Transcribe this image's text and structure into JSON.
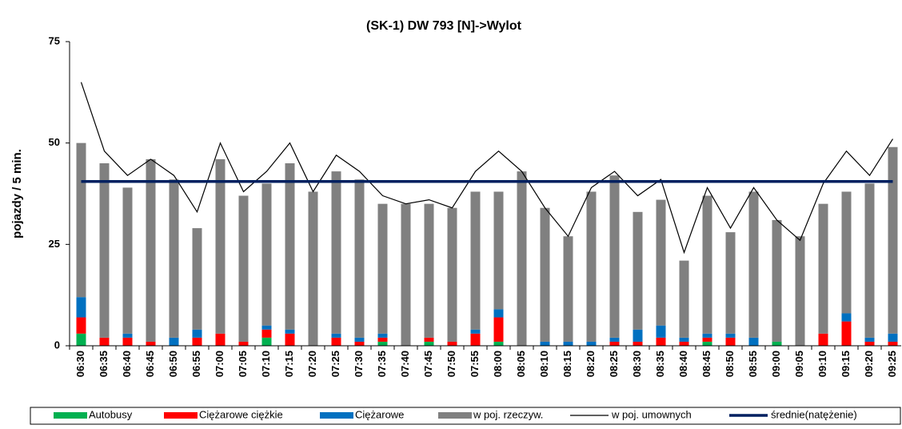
{
  "chart_data": {
    "type": "bar",
    "stacked": true,
    "title": "(SK-1) DW 793 [N]->Wylot",
    "y_label": "pojazdy / 5 min.",
    "categories": [
      "06:30",
      "06:35",
      "06:40",
      "06:45",
      "06:50",
      "06:55",
      "07:00",
      "07:05",
      "07:10",
      "07:15",
      "07:20",
      "07:25",
      "07:30",
      "07:35",
      "07:40",
      "07:45",
      "07:50",
      "07:55",
      "08:00",
      "08:05",
      "08:10",
      "08:15",
      "08:20",
      "08:25",
      "08:30",
      "08:35",
      "08:40",
      "08:45",
      "08:50",
      "08:55",
      "09:00",
      "09:05",
      "09:10",
      "09:15",
      "09:20",
      "09:25"
    ],
    "ylim": [
      0,
      75
    ],
    "yticks": [
      0,
      25,
      50,
      75
    ],
    "legend": "bottom",
    "series": [
      {
        "name": "Autobusy",
        "type": "bar",
        "color": "#00b050",
        "values": [
          3,
          0,
          0,
          0,
          0,
          0,
          0,
          0,
          2,
          0,
          0,
          0,
          0,
          1,
          0,
          1,
          0,
          0,
          1,
          0,
          0,
          0,
          0,
          0,
          0,
          0,
          0,
          1,
          0,
          0,
          1,
          0,
          0,
          0,
          0,
          0
        ]
      },
      {
        "name": "Ciężarowe ciężkie",
        "type": "bar",
        "color": "#ff0000",
        "values": [
          4,
          2,
          2,
          1,
          0,
          2,
          3,
          1,
          2,
          3,
          0,
          2,
          1,
          1,
          0,
          1,
          1,
          3,
          6,
          0,
          0,
          0,
          0,
          1,
          1,
          2,
          1,
          1,
          2,
          0,
          0,
          0,
          3,
          6,
          1,
          1
        ]
      },
      {
        "name": "Ciężarowe",
        "type": "bar",
        "color": "#0070c0",
        "values": [
          5,
          0,
          1,
          0,
          2,
          2,
          0,
          0,
          1,
          1,
          0,
          1,
          1,
          1,
          0,
          0,
          0,
          1,
          2,
          0,
          1,
          1,
          1,
          1,
          3,
          3,
          1,
          1,
          1,
          2,
          0,
          0,
          0,
          2,
          1,
          2
        ]
      },
      {
        "name": "w poj. rzeczyw.",
        "type": "bar",
        "color": "#808080",
        "values": [
          38,
          43,
          36,
          45,
          39,
          25,
          43,
          36,
          35,
          41,
          38,
          40,
          39,
          32,
          35,
          33,
          33,
          34,
          29,
          43,
          33,
          26,
          37,
          40,
          29,
          31,
          19,
          34,
          25,
          36,
          30,
          27,
          32,
          30,
          38,
          46
        ]
      },
      {
        "name": "w poj. umownych",
        "type": "line",
        "color": "#000000",
        "width": 1.2,
        "values": [
          65,
          48,
          42,
          46,
          42,
          33,
          50,
          38,
          43,
          50,
          38,
          47,
          43,
          37,
          35,
          36,
          34,
          43,
          48,
          43,
          34,
          27,
          39,
          43,
          37,
          41,
          23,
          39,
          29,
          39,
          31,
          26,
          40,
          48,
          42,
          51
        ]
      },
      {
        "name": "średnie(natężenie)",
        "type": "line",
        "color": "#002060",
        "width": 3.5,
        "values": [
          40.5,
          40.5,
          40.5,
          40.5,
          40.5,
          40.5,
          40.5,
          40.5,
          40.5,
          40.5,
          40.5,
          40.5,
          40.5,
          40.5,
          40.5,
          40.5,
          40.5,
          40.5,
          40.5,
          40.5,
          40.5,
          40.5,
          40.5,
          40.5,
          40.5,
          40.5,
          40.5,
          40.5,
          40.5,
          40.5,
          40.5,
          40.5,
          40.5,
          40.5,
          40.5,
          40.5
        ]
      }
    ]
  }
}
